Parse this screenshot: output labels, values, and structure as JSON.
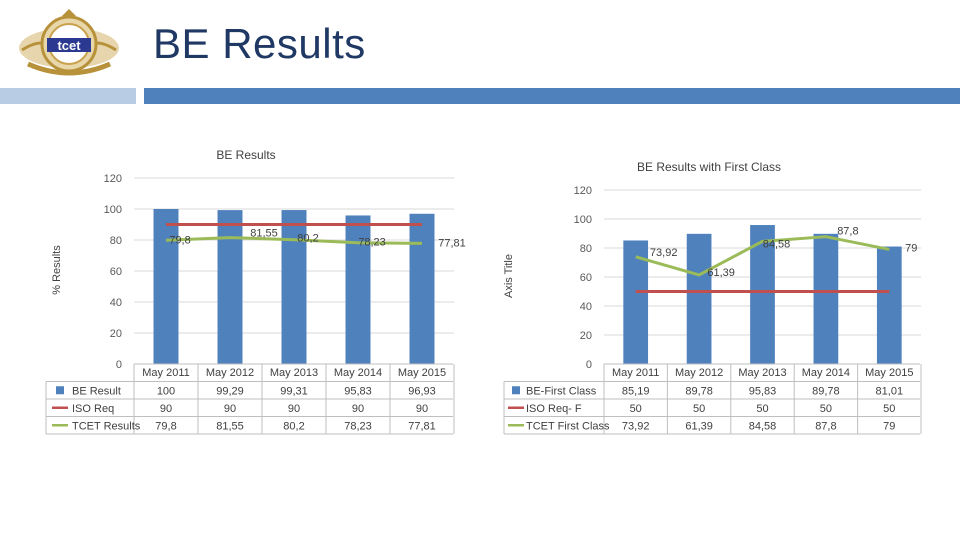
{
  "header": {
    "title": "BE Results",
    "logo_text": "tcet"
  },
  "colors": {
    "title": "#1f3864",
    "bar": "#4f81bd",
    "iso": "#c0504d",
    "tcet": "#9bbb59",
    "accent_light": "#b8cce4"
  },
  "chart_data": [
    {
      "type": "bar",
      "title": "BE Results",
      "ylabel": "% Results",
      "xlabel": "",
      "ylim": [
        0,
        120
      ],
      "yticks": [
        0,
        20,
        40,
        60,
        80,
        100,
        120
      ],
      "categories": [
        "May 2011",
        "May 2012",
        "May 2013",
        "May 2014",
        "May 2015"
      ],
      "series": [
        {
          "name": "BE Result",
          "kind": "bar",
          "values": [
            100,
            99.29,
            99.31,
            95.83,
            96.93
          ],
          "display": [
            "100",
            "99,29",
            "99,31",
            "95,83",
            "96,93"
          ]
        },
        {
          "name": "ISO Req",
          "kind": "line",
          "values": [
            90,
            90,
            90,
            90,
            90
          ],
          "display": [
            "90",
            "90",
            "90",
            "90",
            "90"
          ]
        },
        {
          "name": "TCET Results",
          "kind": "line",
          "values": [
            79.8,
            81.55,
            80.2,
            78.23,
            77.81
          ],
          "display": [
            "79,8",
            "81,55",
            "80,2",
            "78,23",
            "77,81"
          ]
        }
      ]
    },
    {
      "type": "bar",
      "title": "BE Results with First Class",
      "ylabel": "Axis Title",
      "xlabel": "",
      "ylim": [
        0,
        120
      ],
      "yticks": [
        0,
        20,
        40,
        60,
        80,
        100,
        120
      ],
      "categories": [
        "May 2011",
        "May 2012",
        "May 2013",
        "May 2014",
        "May 2015"
      ],
      "series": [
        {
          "name": "BE-First Class",
          "kind": "bar",
          "values": [
            85.19,
            89.78,
            95.83,
            89.78,
            81.01
          ],
          "display": [
            "85,19",
            "89,78",
            "95,83",
            "89,78",
            "81,01"
          ]
        },
        {
          "name": "ISO Req- F",
          "kind": "line",
          "values": [
            50,
            50,
            50,
            50,
            50
          ],
          "display": [
            "50",
            "50",
            "50",
            "50",
            "50"
          ]
        },
        {
          "name": "TCET First Class",
          "kind": "line",
          "values": [
            73.92,
            61.39,
            84.58,
            87.8,
            79
          ],
          "display": [
            "73,92",
            "61,39",
            "84,58",
            "87,8",
            "79"
          ]
        }
      ]
    }
  ]
}
